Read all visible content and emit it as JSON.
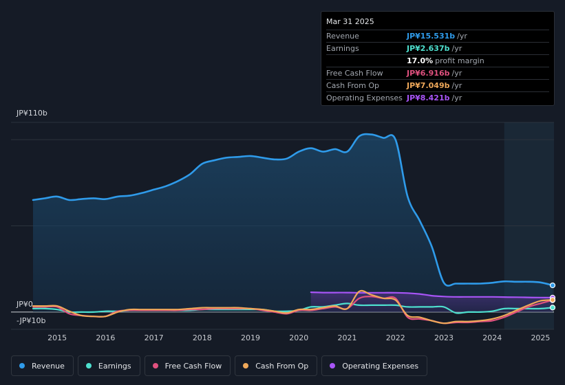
{
  "tooltip": {
    "date": "Mar 31 2025",
    "rows": [
      {
        "label": "Revenue",
        "value": "JP¥15.531b",
        "unit": "/yr",
        "color": "#2f9bea"
      },
      {
        "label": "Earnings",
        "value": "JP¥2.637b",
        "unit": "/yr",
        "color": "#4ee0cf"
      },
      {
        "label": "",
        "value": "17.0%",
        "unit": "profit margin",
        "color": "#ffffff"
      },
      {
        "label": "Free Cash Flow",
        "value": "JP¥6.916b",
        "unit": "/yr",
        "color": "#e0517f"
      },
      {
        "label": "Cash From Op",
        "value": "JP¥7.049b",
        "unit": "/yr",
        "color": "#f0a95a"
      },
      {
        "label": "Operating Expenses",
        "value": "JP¥8.421b",
        "unit": "/yr",
        "color": "#a855f7"
      }
    ]
  },
  "legend": [
    {
      "label": "Revenue",
      "color": "#2f9bea"
    },
    {
      "label": "Earnings",
      "color": "#4ee0cf"
    },
    {
      "label": "Free Cash Flow",
      "color": "#e0517f"
    },
    {
      "label": "Cash From Op",
      "color": "#f0a95a"
    },
    {
      "label": "Operating Expenses",
      "color": "#a855f7"
    }
  ],
  "chart_data": {
    "type": "line",
    "title": "",
    "xlabel": "",
    "ylabel": "",
    "ylim": [
      -10,
      110
    ],
    "y_labels": [
      {
        "value": 110,
        "text": "JP¥110b"
      },
      {
        "value": 0,
        "text": "JP¥0"
      },
      {
        "value": -10,
        "text": "-JP¥10b"
      }
    ],
    "xlim": [
      2014.45,
      2025.25
    ],
    "x_ticks": [
      {
        "value": 2015,
        "text": "2015"
      },
      {
        "value": 2016,
        "text": "2016"
      },
      {
        "value": 2017,
        "text": "2017"
      },
      {
        "value": 2018,
        "text": "2018"
      },
      {
        "value": 2019,
        "text": "2019"
      },
      {
        "value": 2020,
        "text": "2020"
      },
      {
        "value": 2021,
        "text": "2021"
      },
      {
        "value": 2022,
        "text": "2022"
      },
      {
        "value": 2023,
        "text": "2023"
      },
      {
        "value": 2024,
        "text": "2024"
      },
      {
        "value": 2025,
        "text": "2025"
      }
    ],
    "forecast_start": 2024.25,
    "series": [
      {
        "name": "Revenue",
        "color": "#2f9bea",
        "fill": true,
        "x": [
          2014.5,
          2014.75,
          2015.0,
          2015.25,
          2015.5,
          2015.75,
          2016.0,
          2016.25,
          2016.5,
          2016.75,
          2017.0,
          2017.25,
          2017.5,
          2017.75,
          2018.0,
          2018.25,
          2018.5,
          2018.75,
          2019.0,
          2019.25,
          2019.5,
          2019.75,
          2020.0,
          2020.25,
          2020.5,
          2020.75,
          2021.0,
          2021.25,
          2021.5,
          2021.75,
          2022.0,
          2022.25,
          2022.5,
          2022.75,
          2023.0,
          2023.25,
          2023.5,
          2023.75,
          2024.0,
          2024.25,
          2024.5,
          2024.75,
          2025.0,
          2025.25
        ],
        "values": [
          65,
          66,
          67,
          65,
          65.5,
          66,
          65.5,
          67,
          67.5,
          69,
          71,
          73,
          76,
          80,
          86,
          88,
          89.5,
          90,
          90.5,
          89.5,
          88.5,
          89,
          93,
          95,
          93,
          94.5,
          93,
          102,
          103,
          101,
          100,
          67,
          53,
          38,
          17,
          16.5,
          16.5,
          16.5,
          17,
          17.8,
          17.6,
          17.6,
          17.2,
          15.5
        ]
      },
      {
        "name": "Earnings",
        "color": "#4ee0cf",
        "fill": false,
        "x": [
          2014.5,
          2014.75,
          2015.0,
          2015.25,
          2015.5,
          2015.75,
          2016.0,
          2016.25,
          2016.5,
          2016.75,
          2017.0,
          2017.25,
          2017.5,
          2017.75,
          2018.0,
          2018.25,
          2018.5,
          2018.75,
          2019.0,
          2019.25,
          2019.5,
          2019.75,
          2020.0,
          2020.25,
          2020.5,
          2020.75,
          2021.0,
          2021.25,
          2021.5,
          2021.75,
          2022.0,
          2022.25,
          2022.5,
          2022.75,
          2023.0,
          2023.25,
          2023.5,
          2023.75,
          2024.0,
          2024.25,
          2024.5,
          2024.75,
          2025.0,
          2025.25
        ],
        "values": [
          2,
          2,
          1.5,
          0,
          0,
          0,
          0.5,
          0.5,
          1,
          1,
          1,
          1,
          1,
          1,
          1.5,
          1.5,
          1.5,
          1.5,
          1.5,
          1.5,
          0.5,
          0.5,
          1,
          3,
          3,
          4,
          5,
          4,
          4,
          4,
          4,
          3,
          3,
          3,
          3,
          -0.5,
          0,
          0,
          0.5,
          2,
          2,
          2,
          2,
          2.6
        ]
      },
      {
        "name": "Free Cash Flow",
        "color": "#e0517f",
        "fill": false,
        "x": [
          2014.5,
          2014.75,
          2015.0,
          2015.25,
          2015.5,
          2015.75,
          2016.0,
          2016.25,
          2016.5,
          2016.75,
          2017.0,
          2017.25,
          2017.5,
          2017.75,
          2018.0,
          2018.25,
          2018.5,
          2018.75,
          2019.0,
          2019.25,
          2019.5,
          2019.75,
          2020.0,
          2020.25,
          2020.5,
          2020.75,
          2021.0,
          2021.25,
          2021.5,
          2021.75,
          2022.0,
          2022.25,
          2022.5,
          2022.75,
          2023.0,
          2023.25,
          2023.5,
          2023.75,
          2024.0,
          2024.25,
          2024.5,
          2024.75,
          2025.0,
          2025.25
        ],
        "values": [
          3,
          3,
          3,
          -1,
          -2,
          -2.5,
          -2.5,
          0.5,
          1,
          1,
          1,
          1,
          1,
          1.5,
          1.5,
          2,
          2,
          2,
          2,
          1,
          0,
          -1,
          1,
          1,
          2,
          3,
          2,
          8,
          9,
          8,
          8,
          -3,
          -4,
          -5,
          -6.5,
          -6,
          -6,
          -5.5,
          -5,
          -3,
          0,
          3,
          5,
          6.9
        ]
      },
      {
        "name": "Cash From Op",
        "color": "#f0a95a",
        "fill": false,
        "x": [
          2014.5,
          2014.75,
          2015.0,
          2015.25,
          2015.5,
          2015.75,
          2016.0,
          2016.25,
          2016.5,
          2016.75,
          2017.0,
          2017.25,
          2017.5,
          2017.75,
          2018.0,
          2018.25,
          2018.5,
          2018.75,
          2019.0,
          2019.25,
          2019.5,
          2019.75,
          2020.0,
          2020.25,
          2020.5,
          2020.75,
          2021.0,
          2021.25,
          2021.5,
          2021.75,
          2022.0,
          2022.25,
          2022.5,
          2022.75,
          2023.0,
          2023.25,
          2023.5,
          2023.75,
          2024.0,
          2024.25,
          2024.5,
          2024.75,
          2025.0,
          2025.25
        ],
        "values": [
          3.5,
          3.5,
          3.5,
          0.5,
          -2,
          -2.5,
          -2.5,
          0,
          1.5,
          1.5,
          1.5,
          1.5,
          1.5,
          2,
          2.5,
          2.5,
          2.5,
          2.5,
          2,
          1.5,
          0.5,
          -0.5,
          1.5,
          1.5,
          2.5,
          3.5,
          2,
          12,
          10,
          8,
          7,
          -2,
          -3,
          -5,
          -6.5,
          -5.5,
          -5.5,
          -5,
          -4,
          -2,
          1,
          4,
          6.5,
          7.05
        ]
      },
      {
        "name": "Operating Expenses",
        "color": "#a855f7",
        "fill": true,
        "x": [
          2020.25,
          2020.5,
          2020.75,
          2021.0,
          2021.25,
          2021.5,
          2021.75,
          2022.0,
          2022.25,
          2022.5,
          2022.75,
          2023.0,
          2023.25,
          2023.5,
          2023.75,
          2024.0,
          2024.25,
          2024.5,
          2024.75,
          2025.0,
          2025.25
        ],
        "values": [
          11.5,
          11.3,
          11.3,
          11.3,
          11.2,
          11.2,
          11.2,
          11.2,
          11.0,
          10.5,
          9.5,
          9,
          8.8,
          8.8,
          8.8,
          8.8,
          8.7,
          8.6,
          8.5,
          8.4,
          8.4
        ]
      }
    ]
  }
}
